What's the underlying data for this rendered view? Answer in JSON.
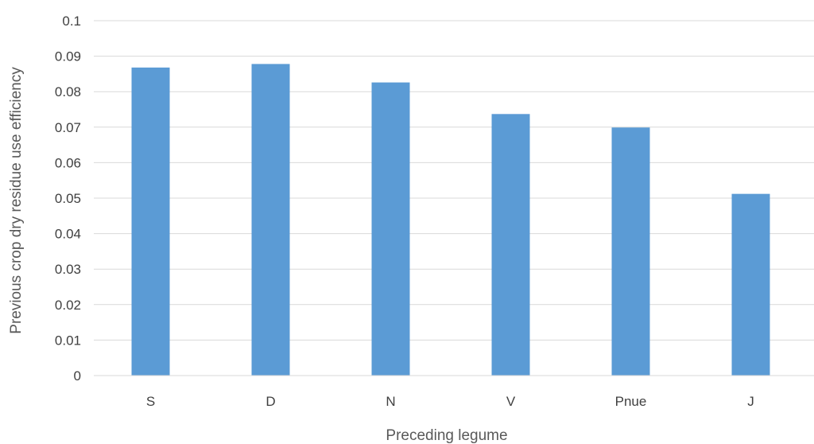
{
  "chart_data": {
    "type": "bar",
    "title": "",
    "xlabel": "Preceding legume",
    "ylabel": "Previous crop dry residue use efficiency",
    "categories": [
      "S",
      "D",
      "N",
      "V",
      "Pnue",
      "J"
    ],
    "values": [
      0.0868,
      0.0878,
      0.0826,
      0.0737,
      0.0699,
      0.0512
    ],
    "ylim": [
      0,
      0.1
    ],
    "yticks": [
      "0",
      "0.01",
      "0.02",
      "0.03",
      "0.04",
      "0.05",
      "0.06",
      "0.07",
      "0.08",
      "0.09",
      "0.1"
    ],
    "grid": true,
    "legend": "none",
    "bar_color": "#5b9bd5",
    "grid_color": "#d9d9d9"
  }
}
